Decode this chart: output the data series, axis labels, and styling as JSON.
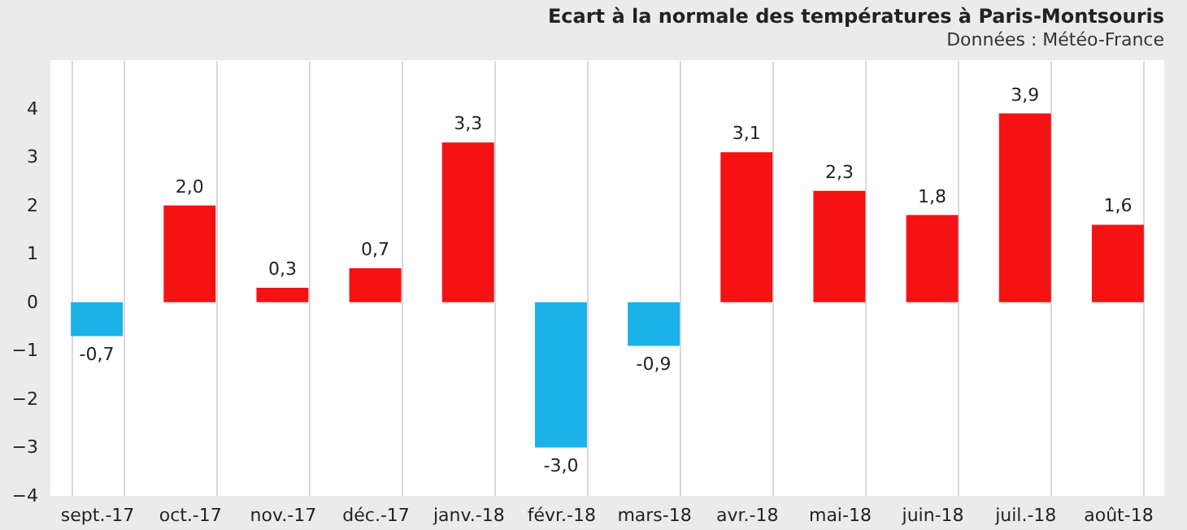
{
  "chart_data": {
    "type": "bar",
    "title": "Ecart à la normale des températures à Paris-Montsouris",
    "subtitle": "Données : Météo-France",
    "categories": [
      "sept.-17",
      "oct.-17",
      "nov.-17",
      "déc.-17",
      "janv.-18",
      "févr.-18",
      "mars-18",
      "avr.-18",
      "mai-18",
      "juin-18",
      "juil.-18",
      "août-18"
    ],
    "values": [
      -0.7,
      2.0,
      0.3,
      0.7,
      3.3,
      -3.0,
      -0.9,
      3.1,
      2.3,
      1.8,
      3.9,
      1.6
    ],
    "colors": [
      "#1ab2e8",
      "#f51212",
      "#f51212",
      "#f51212",
      "#f51212",
      "#1ab2e8",
      "#1ab2e8",
      "#f51212",
      "#f51212",
      "#f51212",
      "#f51212",
      "#f51212"
    ],
    "value_labels": [
      "-0,7",
      "2,0",
      "0,3",
      "0,7",
      "3,3",
      "-3,0",
      "-0,9",
      "3,1",
      "2,3",
      "1,8",
      "3,9",
      "1,6"
    ],
    "ylim": [
      -4,
      5
    ],
    "yticks": [
      -4,
      -3,
      -2,
      -1,
      0,
      1,
      2,
      3,
      4
    ],
    "grid": "x"
  }
}
